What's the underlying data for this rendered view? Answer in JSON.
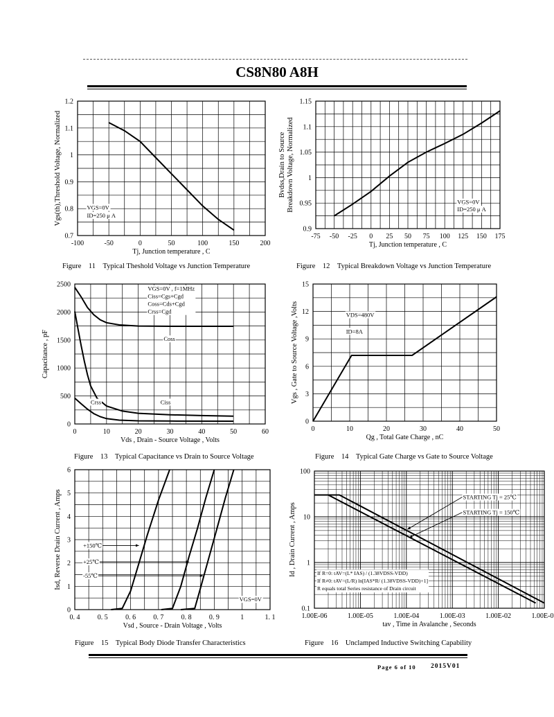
{
  "header": {
    "part_number": "CS8N80 A8H"
  },
  "footer": {
    "page": "Page 6 of 10",
    "revision": "2015V01"
  },
  "chart_data": [
    {
      "id": "fig11",
      "type": "line",
      "caption": "Figure 11 Typical Theshold Voltage vs Junction Temperature",
      "caption_fig": "Figure",
      "caption_num": "11",
      "caption_text": "Typical Theshold Voltage vs Junction Temperature",
      "xlabel": "Tj, Junction temperature , C",
      "ylabel": "Vgs(th),Threshold Voltage, Normalized",
      "xlim": [
        -100,
        200
      ],
      "ylim": [
        0.7,
        1.2
      ],
      "xticks": [
        -100,
        -50,
        0,
        50,
        100,
        150,
        200
      ],
      "xtick_labels": [
        "-100",
        "-50",
        "0",
        "50",
        "100",
        "150",
        "200"
      ],
      "yticks": [
        0.7,
        0.8,
        0.9,
        1.0,
        1.1,
        1.2
      ],
      "ytick_labels": [
        "0.7",
        "0.8",
        "0.9",
        "1",
        "1.1",
        "1.2"
      ],
      "grid": true,
      "annotations": [
        {
          "text": "VGS=0V",
          "x": -85,
          "y": 0.797
        },
        {
          "text": "ID=250 μ A",
          "x": -85,
          "y": 0.767
        }
      ],
      "series": [
        {
          "points": [
            [
              -50,
              1.12
            ],
            [
              -25,
              1.09
            ],
            [
              0,
              1.05
            ],
            [
              25,
              0.99
            ],
            [
              50,
              0.93
            ],
            [
              75,
              0.87
            ],
            [
              100,
              0.81
            ],
            [
              125,
              0.76
            ],
            [
              150,
              0.72
            ]
          ]
        }
      ]
    },
    {
      "id": "fig12",
      "type": "line",
      "caption": "Figure 12 Typical Breakdown Voltage vs Junction Temperature",
      "caption_fig": "Figure",
      "caption_num": "12",
      "caption_text": "Typical Breakdown Voltage vs Junction Temperature",
      "xlabel": "Tj, Junction temperature , C",
      "ylabel": [
        "Bvdss,Drain to Source",
        "Breakdown Voltage, Normalized"
      ],
      "xlim": [
        -75,
        175
      ],
      "ylim": [
        0.9,
        1.15
      ],
      "xticks": [
        -75,
        -50,
        -25,
        0,
        25,
        50,
        75,
        100,
        125,
        150,
        175
      ],
      "xtick_labels": [
        "-75",
        "-50",
        "-25",
        "0",
        "25",
        "50",
        "75",
        "100",
        "125",
        "150",
        "175"
      ],
      "yticks": [
        0.9,
        0.95,
        1.0,
        1.05,
        1.1,
        1.15
      ],
      "ytick_labels": [
        "0.9",
        "0.95",
        "1",
        "1.05",
        "1.1",
        "1.15"
      ],
      "grid": true,
      "annotations": [
        {
          "text": "VGS=0V",
          "x": 117,
          "y": 0.948
        },
        {
          "text": "ID=250 μ A",
          "x": 117,
          "y": 0.934
        }
      ],
      "series": [
        {
          "points": [
            [
              -50,
              0.925
            ],
            [
              -25,
              0.948
            ],
            [
              0,
              0.973
            ],
            [
              25,
              1.003
            ],
            [
              50,
              1.03
            ],
            [
              75,
              1.05
            ],
            [
              100,
              1.067
            ],
            [
              125,
              1.085
            ],
            [
              150,
              1.107
            ],
            [
              175,
              1.131
            ]
          ]
        }
      ]
    },
    {
      "id": "fig13",
      "type": "line",
      "caption": "Figure 13 Typical Capacitance vs Drain to Source Voltage",
      "caption_fig": "Figure",
      "caption_num": "13",
      "caption_text": "Typical Capacitance vs Drain to Source Voltage",
      "xlabel": "Vds , Drain - Source Voltage , Volts",
      "ylabel": "Capacitance , pF",
      "xlim": [
        0,
        60
      ],
      "ylim": [
        0,
        2500
      ],
      "xticks": [
        0,
        10,
        20,
        30,
        40,
        50,
        60
      ],
      "xtick_labels": [
        "0",
        "10",
        "20",
        "30",
        "40",
        "50",
        "60"
      ],
      "yticks": [
        0,
        500,
        1000,
        1500,
        2000,
        2500
      ],
      "ytick_labels": [
        "0",
        "500",
        "1000",
        "1500",
        "2000",
        "2500"
      ],
      "grid": true,
      "legend_lines": [
        "VGS=0V , f=1MHz",
        "Ciss=Cgs+Cgd",
        "Coss=Cds+Cgd",
        "Crss=Cgd"
      ],
      "series": [
        {
          "name": "Ciss",
          "points": [
            [
              0,
              2440
            ],
            [
              2,
              2270
            ],
            [
              4,
              2080
            ],
            [
              6,
              1950
            ],
            [
              8,
              1860
            ],
            [
              10,
              1810
            ],
            [
              14,
              1770
            ],
            [
              20,
              1750
            ],
            [
              30,
              1745
            ],
            [
              50,
              1745
            ]
          ]
        },
        {
          "name": "Coss",
          "points": [
            [
              0,
              2010
            ],
            [
              1,
              1700
            ],
            [
              2,
              1400
            ],
            [
              3,
              1120
            ],
            [
              4,
              880
            ],
            [
              5,
              680
            ],
            [
              7,
              460
            ],
            [
              10,
              320
            ],
            [
              15,
              230
            ],
            [
              20,
              190
            ],
            [
              30,
              165
            ],
            [
              40,
              150
            ],
            [
              50,
              140
            ]
          ]
        },
        {
          "name": "Crss",
          "points": [
            [
              0,
              460
            ],
            [
              2,
              360
            ],
            [
              4,
              265
            ],
            [
              6,
              185
            ],
            [
              8,
              130
            ],
            [
              10,
              95
            ],
            [
              14,
              68
            ],
            [
              20,
              56
            ],
            [
              30,
              52
            ],
            [
              50,
              50
            ]
          ]
        }
      ],
      "series_labels": [
        {
          "text": "Coss",
          "x": 28,
          "y": 1520
        },
        {
          "text": "Ciss",
          "x": 27,
          "y": 390
        },
        {
          "text": "Crss",
          "x": 5,
          "y": 390
        }
      ]
    },
    {
      "id": "fig14",
      "type": "line",
      "caption": "Figure 14 Typical Gate Charge vs Gate to Source Voltage",
      "caption_fig": "Figure",
      "caption_num": "14",
      "caption_text": "Typical Gate Charge vs Gate to Source Voltage",
      "xlabel": "Qg , Total Gate Charge , nC",
      "ylabel": "Vgs , Gate to Source Voltage ,Volts",
      "xlim": [
        0,
        50
      ],
      "ylim": [
        0,
        15
      ],
      "xticks": [
        0,
        10,
        20,
        30,
        40,
        50
      ],
      "xtick_labels": [
        "0",
        "10",
        "20",
        "30",
        "40",
        "50"
      ],
      "yticks": [
        0,
        3,
        6,
        9,
        12,
        15
      ],
      "ytick_labels": [
        "0",
        "3",
        "6",
        "9",
        "12",
        "15"
      ],
      "grid": true,
      "annotations": [
        {
          "text": "VDS=480V",
          "x": 9,
          "y": 11.4
        },
        {
          "text": "ID=8A",
          "x": 9,
          "y": 9.6
        }
      ],
      "series": [
        {
          "points": [
            [
              0,
              0
            ],
            [
              10.5,
              7.2
            ],
            [
              27,
              7.2
            ],
            [
              50,
              13.6
            ]
          ]
        }
      ]
    },
    {
      "id": "fig15",
      "type": "line",
      "caption": "Figure 15 Typical Body Diode Transfer Characteristics",
      "caption_fig": "Figure",
      "caption_num": "15",
      "caption_text": "Typical Body Diode Transfer Characteristics",
      "xlabel": "Vsd , Source - Drain Voltage , Volts",
      "ylabel": "Isd, Reverse Drain Current , Amps",
      "xlim": [
        0.4,
        1.1
      ],
      "ylim": [
        0,
        6
      ],
      "xticks": [
        0.4,
        0.5,
        0.6,
        0.7,
        0.8,
        0.9,
        1.0,
        1.1
      ],
      "xtick_labels": [
        "0. 4",
        "0. 5",
        "0. 6",
        "0. 7",
        "0. 8",
        "0. 9",
        "1",
        "1. 1"
      ],
      "yticks": [
        0,
        1,
        2,
        3,
        4,
        5,
        6
      ],
      "ytick_labels": [
        "0",
        "1",
        "2",
        "3",
        "4",
        "5",
        "6"
      ],
      "grid": true,
      "annotations": [
        {
          "text": "VGS=0V",
          "x": 0.99,
          "y": 0.35
        }
      ],
      "series": [
        {
          "name": "+150℃",
          "points": [
            [
              0.53,
              0
            ],
            [
              0.57,
              0.05
            ],
            [
              0.6,
              0.8
            ],
            [
              0.63,
              2.0
            ],
            [
              0.66,
              3.2
            ],
            [
              0.7,
              4.7
            ],
            [
              0.74,
              6.0
            ]
          ]
        },
        {
          "name": "+25℃",
          "points": [
            [
              0.71,
              0
            ],
            [
              0.75,
              0.05
            ],
            [
              0.78,
              1.0
            ],
            [
              0.81,
              2.3
            ],
            [
              0.84,
              3.5
            ],
            [
              0.87,
              4.8
            ],
            [
              0.9,
              6.0
            ]
          ]
        },
        {
          "name": "-55℃",
          "points": [
            [
              0.78,
              0
            ],
            [
              0.83,
              0.05
            ],
            [
              0.85,
              0.9
            ],
            [
              0.88,
              2.2
            ],
            [
              0.91,
              3.5
            ],
            [
              0.94,
              4.8
            ],
            [
              0.97,
              6.0
            ]
          ]
        }
      ],
      "series_labels": [
        {
          "text": "+150℃",
          "x": 0.43,
          "y": 2.75,
          "arrow_to": [
            0.63,
            2.75
          ]
        },
        {
          "text": "+25℃",
          "x": 0.43,
          "y": 2.05,
          "arrow_to": [
            0.81,
            2.05
          ]
        },
        {
          "text": "-55℃",
          "x": 0.43,
          "y": 1.45,
          "arrow_to": [
            0.86,
            1.45
          ]
        }
      ]
    },
    {
      "id": "fig16",
      "type": "line",
      "caption": "Figure 16 Unclamped Inductive Switching Capability",
      "caption_fig": "Figure",
      "caption_num": "16",
      "caption_text": "Unclamped Inductive Switching Capability",
      "xlabel": "tav , Time in Avalanche , Seconds",
      "ylabel": "Id , Drain Current , Amps",
      "xscale": "log",
      "yscale": "log",
      "xlim": [
        1e-06,
        0.1
      ],
      "ylim": [
        0.1,
        100
      ],
      "xticks": [
        1e-06,
        1e-05,
        0.0001,
        0.001,
        0.01,
        0.1
      ],
      "xtick_labels": [
        "1.00E-06",
        "1.00E-05",
        "1.00E-04",
        "1.00E-03",
        "1.00E-02",
        "1.00E-01"
      ],
      "yticks": [
        0.1,
        1,
        10,
        100
      ],
      "ytick_labels": [
        "0.1",
        "1",
        "10",
        "100"
      ],
      "grid": true,
      "series": [
        {
          "name": "STARTING Tj = 25℃",
          "points": [
            [
              1e-06,
              30
            ],
            [
              3.5e-06,
              30
            ],
            [
              0.1,
              0.13
            ]
          ]
        },
        {
          "name": "STARTING Tj = 150℃",
          "points": [
            [
              1e-06,
              30
            ],
            [
              2e-06,
              30
            ],
            [
              0.065,
              0.13
            ]
          ]
        }
      ],
      "series_labels": [
        {
          "text": "STARTING Tj = 25℃",
          "x": 0.0017,
          "y": 27,
          "arrow_to": [
            0.000105,
            5.3
          ]
        },
        {
          "text": "STARTING Tj = 150℃",
          "x": 0.0017,
          "y": 12.5,
          "arrow_to": [
            0.000115,
            3.5
          ]
        }
      ],
      "notes": [
        "If R=0: tAV=(L* IAS) / (1.38VDSS-VDD)",
        "If R≠0: tAV=(L/R) ln[IAS*R/ (1.38VDSS-VDD)+1]",
        "R equals total Series resistance of Drain circuit"
      ]
    }
  ]
}
